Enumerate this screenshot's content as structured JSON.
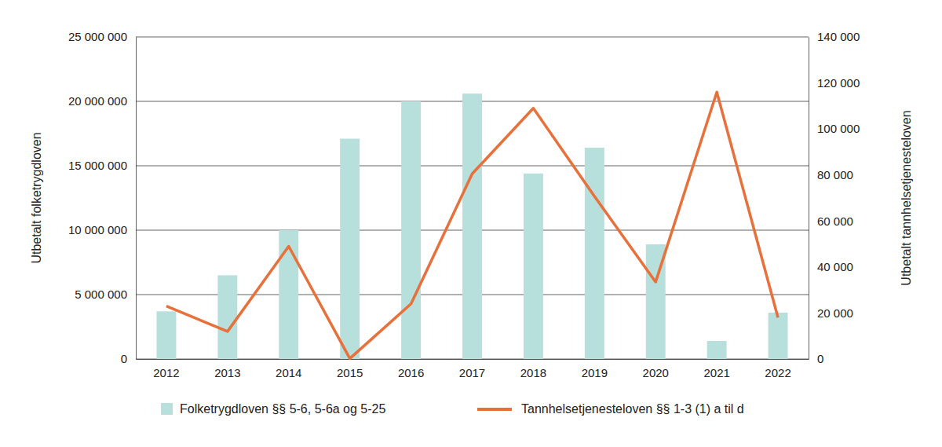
{
  "chart_data": {
    "type": "bar",
    "y_label": "Utbetalt folketrygdloven",
    "y2_label": "Utbetalt tannhelsetjenesteloven",
    "categories": [
      "2012",
      "2013",
      "2014",
      "2015",
      "2016",
      "2017",
      "2018",
      "2019",
      "2020",
      "2021",
      "2022"
    ],
    "series": [
      {
        "name": "Folketrygdloven §§ 5-6, 5-6a og 5-25",
        "type": "bar",
        "color": "#b7dfdb",
        "values": [
          3700000,
          6500000,
          10000000,
          17100000,
          20000000,
          20600000,
          14400000,
          16400000,
          8900000,
          1400000,
          3600000
        ]
      },
      {
        "name": "Tannhelsetjenesteloven §§ 1-3 (1) a til d",
        "type": "line",
        "axis": "y2",
        "color": "#e8703a",
        "values": [
          23000,
          12000,
          49000,
          200,
          24000,
          80500,
          109000,
          70700,
          33500,
          116000,
          18000
        ]
      }
    ],
    "ylim": [
      0,
      25000000
    ],
    "yticks": [
      0,
      {
        "value": 5000000,
        "label": "5 000 000"
      },
      {
        "value": 10000000,
        "label": "10 000 000"
      },
      {
        "value": 15000000,
        "label": "15 000 000"
      },
      {
        "value": 20000000,
        "label": "20 000 000"
      },
      {
        "value": 25000000,
        "label": "25 000 000"
      }
    ],
    "y2lim": [
      0,
      140000
    ],
    "y2ticks": [
      0,
      {
        "value": 20000,
        "label": "20 000"
      },
      {
        "value": 40000,
        "label": "40 000"
      },
      {
        "value": 60000,
        "label": "60 000"
      },
      {
        "value": 80000,
        "label": "80 000"
      },
      {
        "value": 100000,
        "label": "100 000"
      },
      {
        "value": 120000,
        "label": "120 000"
      },
      {
        "value": 140000,
        "label": "140 000"
      }
    ],
    "grid": true,
    "legend": "bottom"
  }
}
